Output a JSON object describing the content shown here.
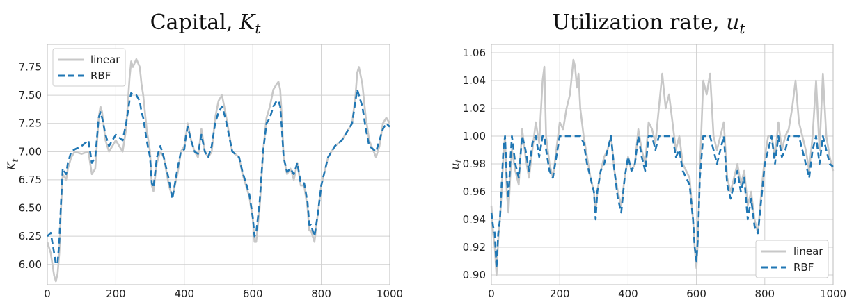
{
  "colors": {
    "linear": "#c8c8c8",
    "rbf": "#2077b4"
  },
  "chart_data": [
    {
      "type": "line",
      "title_main": "Capital, ",
      "title_sym": "K",
      "title_sub": "t",
      "ylabel_sym": "K",
      "ylabel_sub": "t",
      "xlim": [
        0,
        1000
      ],
      "ylim": [
        5.82,
        7.95
      ],
      "xticks": [
        0,
        200,
        400,
        600,
        800,
        1000
      ],
      "yticks": [
        6.0,
        6.25,
        6.5,
        6.75,
        7.0,
        7.25,
        7.5,
        7.75
      ],
      "ytick_labels": [
        "6.00",
        "6.25",
        "6.50",
        "6.75",
        "7.00",
        "7.25",
        "7.50",
        "7.75"
      ],
      "grid": true,
      "legend_position": "top-left",
      "series": [
        {
          "name": "linear",
          "style": "solid",
          "x": [
            0,
            10,
            20,
            25,
            30,
            35,
            40,
            45,
            55,
            60,
            70,
            80,
            100,
            120,
            130,
            140,
            150,
            155,
            160,
            170,
            180,
            200,
            220,
            230,
            240,
            245,
            250,
            260,
            270,
            275,
            280,
            290,
            300,
            305,
            310,
            320,
            330,
            340,
            355,
            365,
            380,
            390,
            400,
            405,
            410,
            420,
            430,
            440,
            450,
            460,
            470,
            480,
            490,
            500,
            510,
            520,
            540,
            560,
            570,
            580,
            590,
            600,
            605,
            610,
            620,
            630,
            640,
            650,
            660,
            670,
            675,
            680,
            685,
            690,
            700,
            710,
            720,
            730,
            740,
            750,
            760,
            765,
            770,
            780,
            790,
            800,
            820,
            840,
            860,
            880,
            890,
            900,
            905,
            910,
            920,
            930,
            940,
            960,
            970,
            980,
            990,
            1000
          ],
          "y": [
            6.2,
            6.1,
            5.9,
            5.85,
            5.92,
            6.1,
            6.5,
            6.8,
            6.75,
            6.85,
            6.95,
            7.0,
            6.98,
            7.0,
            6.8,
            6.85,
            7.3,
            7.4,
            7.35,
            7.1,
            7.0,
            7.1,
            7.0,
            7.2,
            7.65,
            7.8,
            7.75,
            7.82,
            7.75,
            7.6,
            7.5,
            7.2,
            7.0,
            6.7,
            6.65,
            6.9,
            7.0,
            6.95,
            6.7,
            6.6,
            6.8,
            7.0,
            7.05,
            7.15,
            7.25,
            7.1,
            7.0,
            6.95,
            7.2,
            7.0,
            6.95,
            7.0,
            7.3,
            7.45,
            7.5,
            7.35,
            7.0,
            6.95,
            6.8,
            6.7,
            6.6,
            6.4,
            6.2,
            6.2,
            6.5,
            7.0,
            7.3,
            7.4,
            7.55,
            7.6,
            7.62,
            7.55,
            7.3,
            6.95,
            6.8,
            6.85,
            6.75,
            6.9,
            6.7,
            6.7,
            6.5,
            6.3,
            6.3,
            6.2,
            6.45,
            6.7,
            6.95,
            7.05,
            7.1,
            7.2,
            7.25,
            7.5,
            7.7,
            7.75,
            7.6,
            7.3,
            7.1,
            6.95,
            7.05,
            7.25,
            7.3,
            7.25
          ]
        },
        {
          "name": "RBF",
          "style": "dashed",
          "x": [
            0,
            10,
            20,
            25,
            30,
            35,
            40,
            45,
            55,
            60,
            70,
            80,
            100,
            120,
            130,
            140,
            150,
            155,
            160,
            170,
            180,
            200,
            220,
            230,
            240,
            245,
            250,
            260,
            270,
            275,
            280,
            290,
            300,
            305,
            310,
            320,
            330,
            340,
            355,
            365,
            380,
            390,
            400,
            405,
            410,
            420,
            430,
            440,
            450,
            460,
            470,
            480,
            490,
            500,
            510,
            520,
            540,
            560,
            570,
            580,
            590,
            600,
            605,
            610,
            620,
            630,
            640,
            650,
            660,
            670,
            675,
            680,
            685,
            690,
            700,
            710,
            720,
            730,
            740,
            750,
            760,
            765,
            770,
            780,
            790,
            800,
            820,
            840,
            860,
            880,
            890,
            900,
            905,
            910,
            920,
            930,
            940,
            960,
            970,
            980,
            990,
            1000
          ],
          "y": [
            6.25,
            6.28,
            6.1,
            6.0,
            6.02,
            6.2,
            6.55,
            6.85,
            6.8,
            6.9,
            7.0,
            7.02,
            7.05,
            7.1,
            6.9,
            6.95,
            7.3,
            7.35,
            7.3,
            7.15,
            7.05,
            7.15,
            7.1,
            7.25,
            7.45,
            7.52,
            7.5,
            7.5,
            7.45,
            7.35,
            7.3,
            7.1,
            6.95,
            6.72,
            6.68,
            6.95,
            7.05,
            6.95,
            6.75,
            6.58,
            6.85,
            7.0,
            7.02,
            7.15,
            7.22,
            7.1,
            7.0,
            6.98,
            7.15,
            7.0,
            6.95,
            7.05,
            7.25,
            7.35,
            7.4,
            7.3,
            7.0,
            6.95,
            6.82,
            6.72,
            6.62,
            6.42,
            6.25,
            6.28,
            6.55,
            7.0,
            7.25,
            7.3,
            7.4,
            7.45,
            7.45,
            7.4,
            7.2,
            6.95,
            6.82,
            6.85,
            6.8,
            6.9,
            6.72,
            6.72,
            6.55,
            6.35,
            6.35,
            6.25,
            6.45,
            6.7,
            6.95,
            7.05,
            7.1,
            7.2,
            7.25,
            7.45,
            7.55,
            7.5,
            7.4,
            7.2,
            7.05,
            7.0,
            7.1,
            7.2,
            7.25,
            7.22
          ]
        }
      ]
    },
    {
      "type": "line",
      "title_main": "Utilization rate, ",
      "title_sym": "u",
      "title_sub": "t",
      "ylabel_sym": "u",
      "ylabel_sub": "t",
      "xlim": [
        0,
        1000
      ],
      "ylim": [
        0.893,
        1.066
      ],
      "xticks": [
        0,
        200,
        400,
        600,
        800,
        1000
      ],
      "yticks": [
        0.9,
        0.92,
        0.94,
        0.96,
        0.98,
        1.0,
        1.02,
        1.04,
        1.06
      ],
      "ytick_labels": [
        "0.90",
        "0.92",
        "0.94",
        "0.96",
        "0.98",
        "1.00",
        "1.02",
        "1.04",
        "1.06"
      ],
      "grid": true,
      "legend_position": "bottom-right",
      "series": [
        {
          "name": "linear",
          "style": "solid",
          "x": [
            0,
            5,
            10,
            15,
            20,
            25,
            30,
            35,
            40,
            45,
            50,
            55,
            60,
            70,
            80,
            90,
            100,
            110,
            120,
            130,
            140,
            150,
            155,
            160,
            170,
            180,
            190,
            200,
            210,
            220,
            230,
            240,
            245,
            250,
            255,
            260,
            270,
            280,
            290,
            300,
            305,
            310,
            320,
            330,
            340,
            350,
            360,
            370,
            380,
            390,
            400,
            410,
            420,
            430,
            440,
            450,
            460,
            470,
            480,
            490,
            500,
            510,
            520,
            530,
            540,
            550,
            560,
            570,
            580,
            590,
            595,
            600,
            605,
            610,
            620,
            630,
            640,
            650,
            660,
            670,
            680,
            690,
            700,
            710,
            720,
            730,
            740,
            750,
            760,
            770,
            780,
            790,
            800,
            810,
            820,
            830,
            840,
            850,
            860,
            870,
            880,
            890,
            900,
            910,
            920,
            930,
            940,
            950,
            960,
            970,
            980,
            990,
            1000
          ],
          "y": [
            0.95,
            0.93,
            0.92,
            0.9,
            0.925,
            0.94,
            0.96,
            0.985,
            1.0,
            0.96,
            0.945,
            0.97,
            0.99,
            0.975,
            0.965,
            1.005,
            0.985,
            0.97,
            0.99,
            1.01,
            0.995,
            1.04,
            1.05,
            1.0,
            0.98,
            0.97,
            0.99,
            1.01,
            1.005,
            1.02,
            1.03,
            1.055,
            1.05,
            1.035,
            1.045,
            1.02,
            1.0,
            0.985,
            0.97,
            0.96,
            0.945,
            0.96,
            0.975,
            0.985,
            0.99,
            1.0,
            0.975,
            0.96,
            0.95,
            0.97,
            0.985,
            0.975,
            0.98,
            1.005,
            0.99,
            0.98,
            1.01,
            1.005,
            0.995,
            1.02,
            1.045,
            1.02,
            1.03,
            1.01,
            0.99,
            1.0,
            0.98,
            0.975,
            0.97,
            0.94,
            0.92,
            0.905,
            0.93,
            0.975,
            1.04,
            1.03,
            1.045,
            1.0,
            0.99,
            1.0,
            1.01,
            0.97,
            0.96,
            0.97,
            0.98,
            0.965,
            0.975,
            0.95,
            0.96,
            0.94,
            0.93,
            0.96,
            0.985,
            1.0,
            1.0,
            0.985,
            1.01,
            0.99,
            1.0,
            1.005,
            1.02,
            1.04,
            1.01,
            1.0,
            0.99,
            0.975,
            1.0,
            1.04,
            0.99,
            1.045,
            1.0,
            0.985,
            0.975
          ]
        },
        {
          "name": "RBF",
          "style": "dashed",
          "x": [
            0,
            5,
            10,
            15,
            20,
            25,
            30,
            35,
            40,
            45,
            50,
            55,
            60,
            70,
            80,
            90,
            100,
            110,
            120,
            130,
            140,
            150,
            155,
            160,
            170,
            180,
            190,
            200,
            210,
            220,
            230,
            240,
            245,
            250,
            255,
            260,
            270,
            280,
            290,
            300,
            305,
            310,
            320,
            330,
            340,
            350,
            360,
            370,
            380,
            390,
            400,
            410,
            420,
            430,
            440,
            450,
            460,
            470,
            480,
            490,
            500,
            510,
            520,
            530,
            540,
            550,
            560,
            570,
            580,
            590,
            595,
            600,
            605,
            610,
            620,
            630,
            640,
            650,
            660,
            670,
            680,
            690,
            700,
            710,
            720,
            730,
            740,
            750,
            760,
            770,
            780,
            790,
            800,
            810,
            820,
            830,
            840,
            850,
            860,
            870,
            880,
            890,
            900,
            910,
            920,
            930,
            940,
            950,
            960,
            970,
            980,
            990,
            1000
          ],
          "y": [
            0.945,
            0.935,
            0.93,
            0.905,
            0.93,
            0.94,
            0.965,
            0.99,
            1.0,
            0.97,
            0.955,
            0.98,
            1.0,
            0.98,
            0.97,
            1.0,
            0.99,
            0.975,
            0.995,
            1.0,
            0.985,
            1.0,
            1.0,
            0.99,
            0.975,
            0.97,
            0.985,
            1.0,
            1.0,
            1.0,
            1.0,
            1.0,
            1.0,
            1.0,
            1.0,
            1.0,
            0.995,
            0.98,
            0.97,
            0.96,
            0.94,
            0.96,
            0.975,
            0.98,
            0.99,
            1.0,
            0.975,
            0.955,
            0.945,
            0.97,
            0.985,
            0.975,
            0.98,
            1.0,
            0.985,
            0.975,
            1.0,
            1.0,
            0.99,
            1.0,
            1.0,
            1.0,
            1.0,
            1.0,
            0.985,
            0.99,
            0.975,
            0.97,
            0.965,
            0.94,
            0.92,
            0.91,
            0.93,
            0.97,
            1.0,
            1.0,
            1.0,
            0.99,
            0.98,
            0.99,
            1.0,
            0.965,
            0.955,
            0.965,
            0.975,
            0.96,
            0.97,
            0.94,
            0.955,
            0.935,
            0.93,
            0.955,
            0.98,
            0.99,
            1.0,
            0.98,
            1.0,
            0.985,
            0.99,
            1.0,
            1.0,
            1.0,
            1.0,
            0.99,
            0.98,
            0.97,
            0.99,
            1.0,
            0.98,
            1.0,
            0.99,
            0.98,
            0.978
          ]
        }
      ]
    }
  ]
}
